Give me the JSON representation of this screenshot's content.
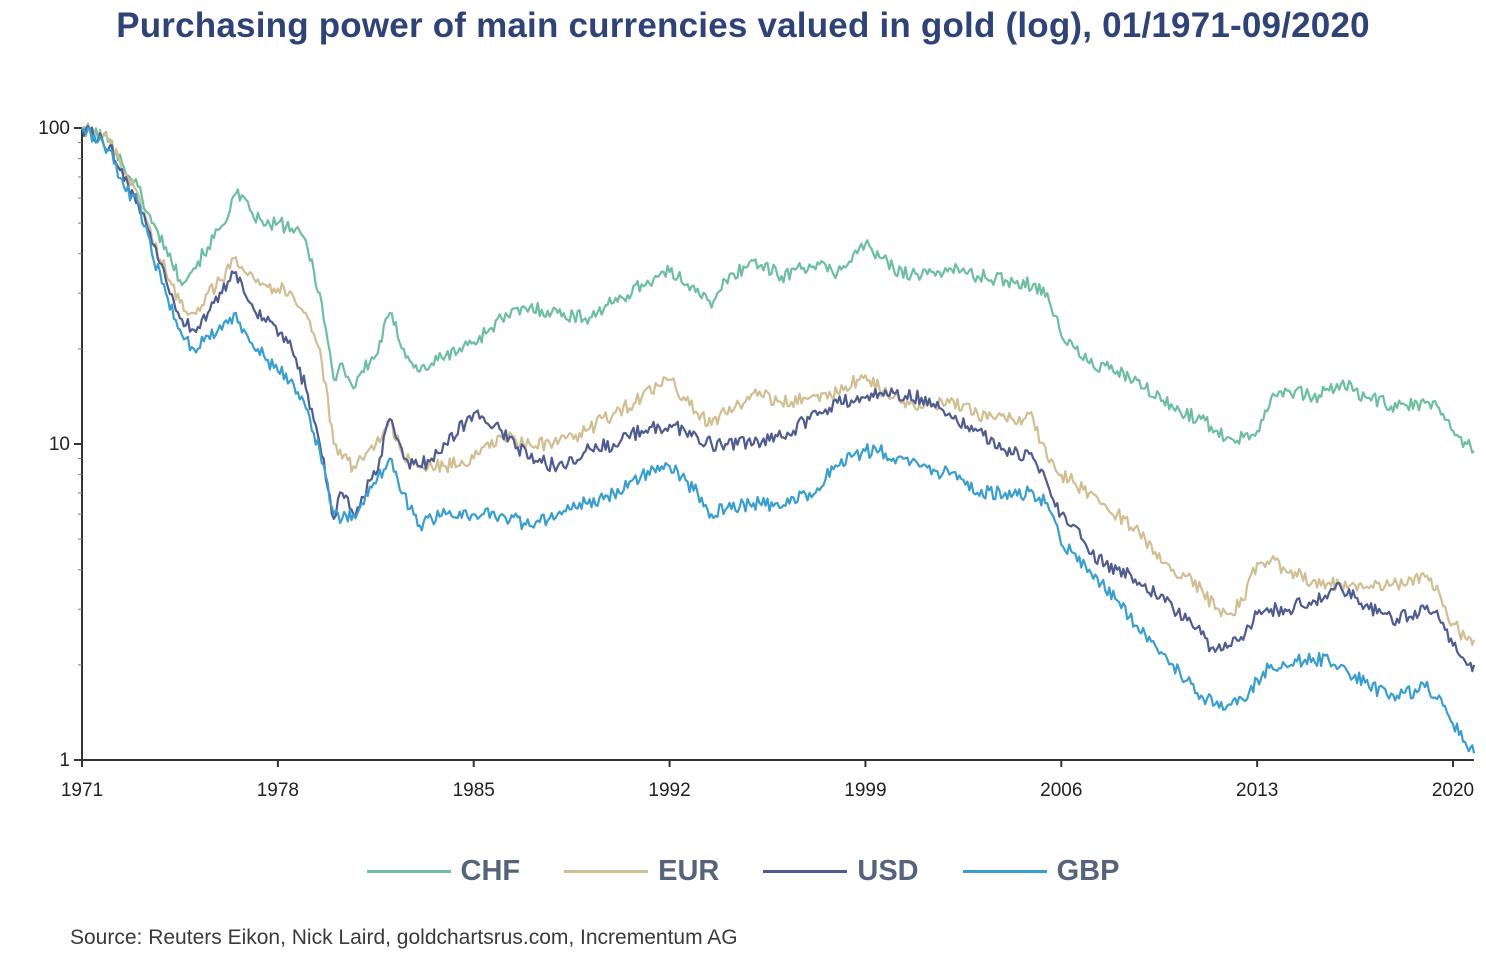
{
  "title": "Purchasing power of main currencies valued in gold (log), 01/1971-09/2020",
  "source": "Source: Reuters Eikon, Nick Laird, goldchartsrus.com, Incrementum AG",
  "chart_data": {
    "type": "line",
    "title": "Purchasing power of main currencies valued in gold (log), 01/1971-09/2020",
    "y_scale": "log",
    "ylim": [
      1,
      100
    ],
    "xlim": [
      1971,
      2020.75
    ],
    "x_ticks": [
      "1971",
      "1978",
      "1985",
      "1992",
      "1999",
      "2006",
      "2013",
      "2020"
    ],
    "y_ticks": [
      "1",
      "10",
      "100"
    ],
    "legend_position": "bottom",
    "grid": false,
    "series": [
      {
        "name": "CHF",
        "color": "#6dbf9f",
        "x": [
          1971,
          1972,
          1972.5,
          1973,
          1973.5,
          1974,
          1974.5,
          1975,
          1975.5,
          1976,
          1976.5,
          1977,
          1977.5,
          1978,
          1978.5,
          1979,
          1979.5,
          1980,
          1980.3,
          1980.7,
          1981,
          1981.5,
          1982,
          1982.5,
          1983,
          1983.5,
          1984,
          1985,
          1986,
          1987,
          1988,
          1989,
          1990,
          1991,
          1992,
          1993,
          1993.5,
          1994,
          1995,
          1996,
          1997,
          1998,
          1999,
          1999.5,
          2000,
          2001,
          2002,
          2003,
          2004,
          2005,
          2005.5,
          2006,
          2006.5,
          2007,
          2008,
          2009,
          2010,
          2011,
          2011.5,
          2012,
          2012.5,
          2013,
          2013.5,
          2014,
          2015,
          2016,
          2017,
          2018,
          2019,
          2019.5,
          2020,
          2020.5,
          2020.75
        ],
        "y": [
          100,
          92,
          75,
          65,
          50,
          42,
          33,
          36,
          42,
          49,
          62,
          55,
          49,
          50,
          48,
          44,
          30,
          16,
          18,
          15,
          17,
          19,
          26,
          20,
          17,
          18,
          19,
          21,
          25,
          27,
          26,
          25,
          28,
          32,
          35,
          31,
          27,
          33,
          38,
          34,
          37,
          35,
          43,
          39,
          36,
          34,
          36,
          34,
          33,
          32,
          30,
          22,
          20,
          18,
          17,
          15,
          13,
          12,
          11,
          10.5,
          10.5,
          11,
          14,
          15,
          14,
          15.5,
          14,
          13,
          13.5,
          13,
          11,
          10,
          9.5
        ]
      },
      {
        "name": "EUR",
        "color": "#d2be93",
        "x": [
          1971,
          1972,
          1972.5,
          1973,
          1973.5,
          1974,
          1974.5,
          1975,
          1975.5,
          1976,
          1976.5,
          1977,
          1977.5,
          1978,
          1978.5,
          1979,
          1979.5,
          1980,
          1980.3,
          1980.7,
          1981,
          1981.5,
          1982,
          1982.5,
          1983,
          1983.5,
          1984,
          1985,
          1986,
          1987,
          1988,
          1989,
          1990,
          1991,
          1992,
          1993,
          1993.5,
          1994,
          1995,
          1996,
          1997,
          1998,
          1999,
          1999.5,
          2000,
          2001,
          2002,
          2003,
          2004,
          2005,
          2005.5,
          2006,
          2006.5,
          2007,
          2008,
          2009,
          2010,
          2011,
          2011.5,
          2012,
          2012.5,
          2013,
          2013.5,
          2014,
          2015,
          2016,
          2017,
          2018,
          2019,
          2019.5,
          2020,
          2020.5,
          2020.75
        ],
        "y": [
          100,
          90,
          72,
          62,
          45,
          35,
          28,
          26,
          30,
          33,
          39,
          35,
          32,
          31,
          30,
          26,
          20,
          10,
          9,
          8.5,
          9,
          10,
          12,
          9,
          8.5,
          8.5,
          8.5,
          9,
          10.5,
          10,
          10,
          11,
          12.5,
          14,
          16,
          12.5,
          11.5,
          12.5,
          14.5,
          13.5,
          14,
          14.5,
          16.5,
          15,
          14,
          13,
          13.5,
          12.5,
          12,
          12,
          9,
          8,
          7.5,
          7,
          6,
          5,
          4,
          3.5,
          3,
          2.9,
          3.2,
          4.2,
          4.3,
          4,
          3.7,
          3.6,
          3.5,
          3.6,
          3.8,
          3.4,
          2.7,
          2.4,
          2.4
        ]
      },
      {
        "name": "USD",
        "color": "#4f5c8f",
        "x": [
          1971,
          1972,
          1972.5,
          1973,
          1973.5,
          1974,
          1974.5,
          1975,
          1975.5,
          1976,
          1976.5,
          1977,
          1977.5,
          1978,
          1978.5,
          1979,
          1979.5,
          1980,
          1980.3,
          1980.7,
          1981,
          1981.5,
          1982,
          1982.5,
          1983,
          1983.5,
          1984,
          1985,
          1986,
          1987,
          1988,
          1989,
          1990,
          1991,
          1992,
          1993,
          1993.5,
          1994,
          1995,
          1996,
          1997,
          1998,
          1999,
          1999.5,
          2000,
          2001,
          2002,
          2003,
          2004,
          2005,
          2005.5,
          2006,
          2006.5,
          2007,
          2008,
          2009,
          2010,
          2011,
          2011.5,
          2012,
          2012.5,
          2013,
          2013.5,
          2014,
          2015,
          2016,
          2017,
          2018,
          2019,
          2019.5,
          2020,
          2020.5,
          2020.75
        ],
        "y": [
          100,
          88,
          68,
          58,
          43,
          33,
          25,
          23,
          26,
          30,
          35,
          28,
          25,
          22,
          20,
          15,
          10,
          5.8,
          7,
          6,
          6.8,
          8,
          12,
          9,
          8.5,
          9,
          10,
          12.5,
          11,
          9,
          8.5,
          9.5,
          10,
          11,
          11.5,
          10.5,
          10,
          10,
          10,
          10.5,
          12,
          13.5,
          14,
          14.5,
          14.5,
          14,
          12.5,
          11,
          9.5,
          9,
          7.5,
          6,
          5.5,
          4.5,
          4,
          3.6,
          3,
          2.5,
          2.2,
          2.3,
          2.4,
          2.9,
          3,
          3,
          3.2,
          3.5,
          3,
          2.8,
          3,
          2.8,
          2.3,
          2,
          2
        ]
      },
      {
        "name": "GBP",
        "color": "#3a9fcf",
        "x": [
          1971,
          1972,
          1972.5,
          1973,
          1973.5,
          1974,
          1974.5,
          1975,
          1975.5,
          1976,
          1976.5,
          1977,
          1977.5,
          1978,
          1978.5,
          1979,
          1979.5,
          1980,
          1980.3,
          1980.7,
          1981,
          1981.5,
          1982,
          1982.5,
          1983,
          1983.5,
          1984,
          1985,
          1986,
          1987,
          1988,
          1989,
          1990,
          1991,
          1992,
          1993,
          1993.5,
          1994,
          1995,
          1996,
          1997,
          1998,
          1999,
          1999.5,
          2000,
          2001,
          2002,
          2003,
          2004,
          2005,
          2005.5,
          2006,
          2006.5,
          2007,
          2008,
          2009,
          2010,
          2011,
          2011.5,
          2012,
          2012.5,
          2013,
          2013.5,
          2014,
          2015,
          2016,
          2017,
          2018,
          2019,
          2019.5,
          2020,
          2020.5,
          2020.75
        ],
        "y": [
          100,
          85,
          65,
          58,
          40,
          30,
          23,
          20,
          22,
          23,
          26,
          21,
          19,
          17,
          16,
          13,
          9.5,
          6,
          5.8,
          6,
          6.5,
          7.5,
          9,
          7,
          5.5,
          5.8,
          6,
          6,
          6,
          5.5,
          6,
          6.5,
          7,
          8,
          8.5,
          7,
          6,
          6.2,
          6.5,
          6.3,
          7,
          8.5,
          9.5,
          9.5,
          9,
          8.5,
          8,
          7,
          7,
          7,
          6.5,
          4.8,
          4.5,
          4,
          3.2,
          2.5,
          2,
          1.6,
          1.5,
          1.5,
          1.55,
          1.8,
          2,
          2,
          2.1,
          2,
          1.7,
          1.6,
          1.7,
          1.6,
          1.3,
          1.1,
          1.05
        ]
      }
    ]
  }
}
